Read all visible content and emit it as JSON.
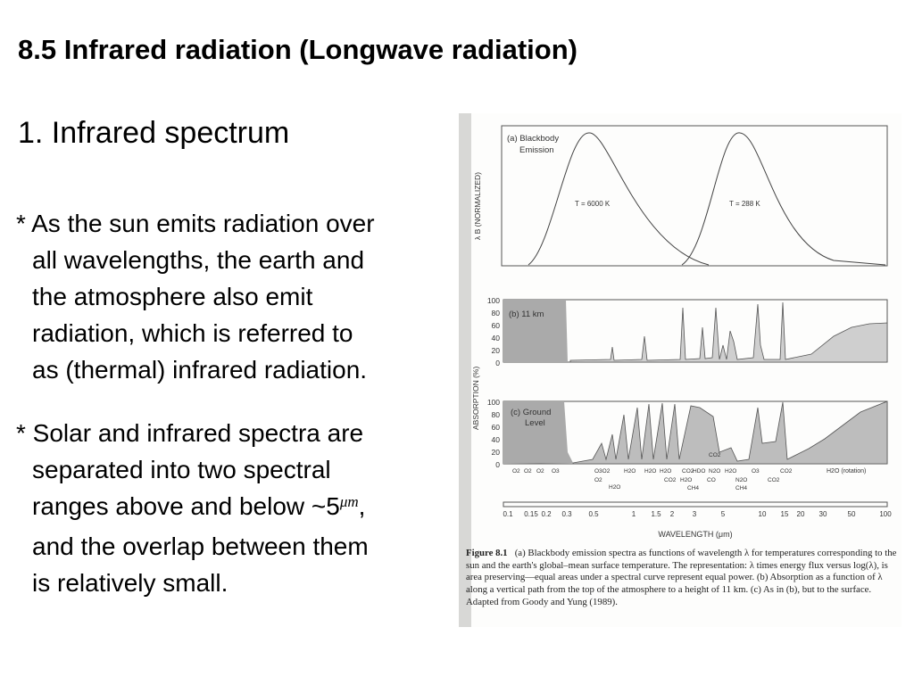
{
  "slide": {
    "title": "8.5  Infrared radiation (Longwave radiation)",
    "subtitle": "1. Infrared spectrum",
    "bullet1": [
      "* As the sun emits radiation over",
      "all wavelengths, the earth and",
      "the atmosphere also emit",
      "radiation, which is referred to",
      "as (thermal) infrared radiation."
    ],
    "bullet2": [
      "* Solar and infrared spectra are",
      "separated into two spectral",
      "ranges above and below ~5",
      ",",
      "and the overlap between them",
      "is relatively small."
    ],
    "unit_um": "μm"
  },
  "figure": {
    "panel_a_label_line1": "(a) Blackbody",
    "panel_a_label_line2": "Emission",
    "panel_a_curve1": "T = 6000 K",
    "panel_a_curve2": "T = 288 K",
    "panel_a_ylabel": "λ B  (NORMALIZED)",
    "panel_b_label": "(b) 11 km",
    "panel_c_label_line1": "(c) Ground",
    "panel_c_label_line2": "Level",
    "absorption_ylabel": "ABSORPTION (%)",
    "yticks": [
      "100",
      "80",
      "60",
      "40",
      "20",
      "0"
    ],
    "gas_labels": [
      "O2",
      "O2",
      "O2",
      "O3",
      "O3O2",
      "H2O",
      "H2O",
      "H2O",
      "CO2",
      "HDO",
      "N2O",
      "CO2",
      "H2O",
      "O3",
      "CO2",
      "H2O (rotation)"
    ],
    "gas_labels_lower": [
      "O2",
      "H2O",
      "CO2",
      "H2O",
      "CH4",
      "CO",
      "N2O",
      "CH4",
      "CO2"
    ],
    "xticks": [
      "0.1",
      "0.15",
      "0.2",
      "0.3",
      "0.5",
      "1",
      "1.5",
      "2",
      "3",
      "5",
      "10",
      "15",
      "20",
      "30",
      "50",
      "100"
    ],
    "xlabel": "WAVELENGTH (μm)",
    "caption_title": "Figure 8.1",
    "caption_body": "(a) Blackbody emission spectra as functions of wavelength λ for temperatures corresponding to the sun and the earth's global–mean surface temperature. The representation: λ times energy flux versus log(λ), is area preserving—equal areas under a spectral curve represent equal power. (b) Absorption as a function of λ along a vertical path from the top of the atmosphere to a height of 11 km. (c) As in (b), but to the surface. Adapted from Goody and Yung (1989)."
  }
}
